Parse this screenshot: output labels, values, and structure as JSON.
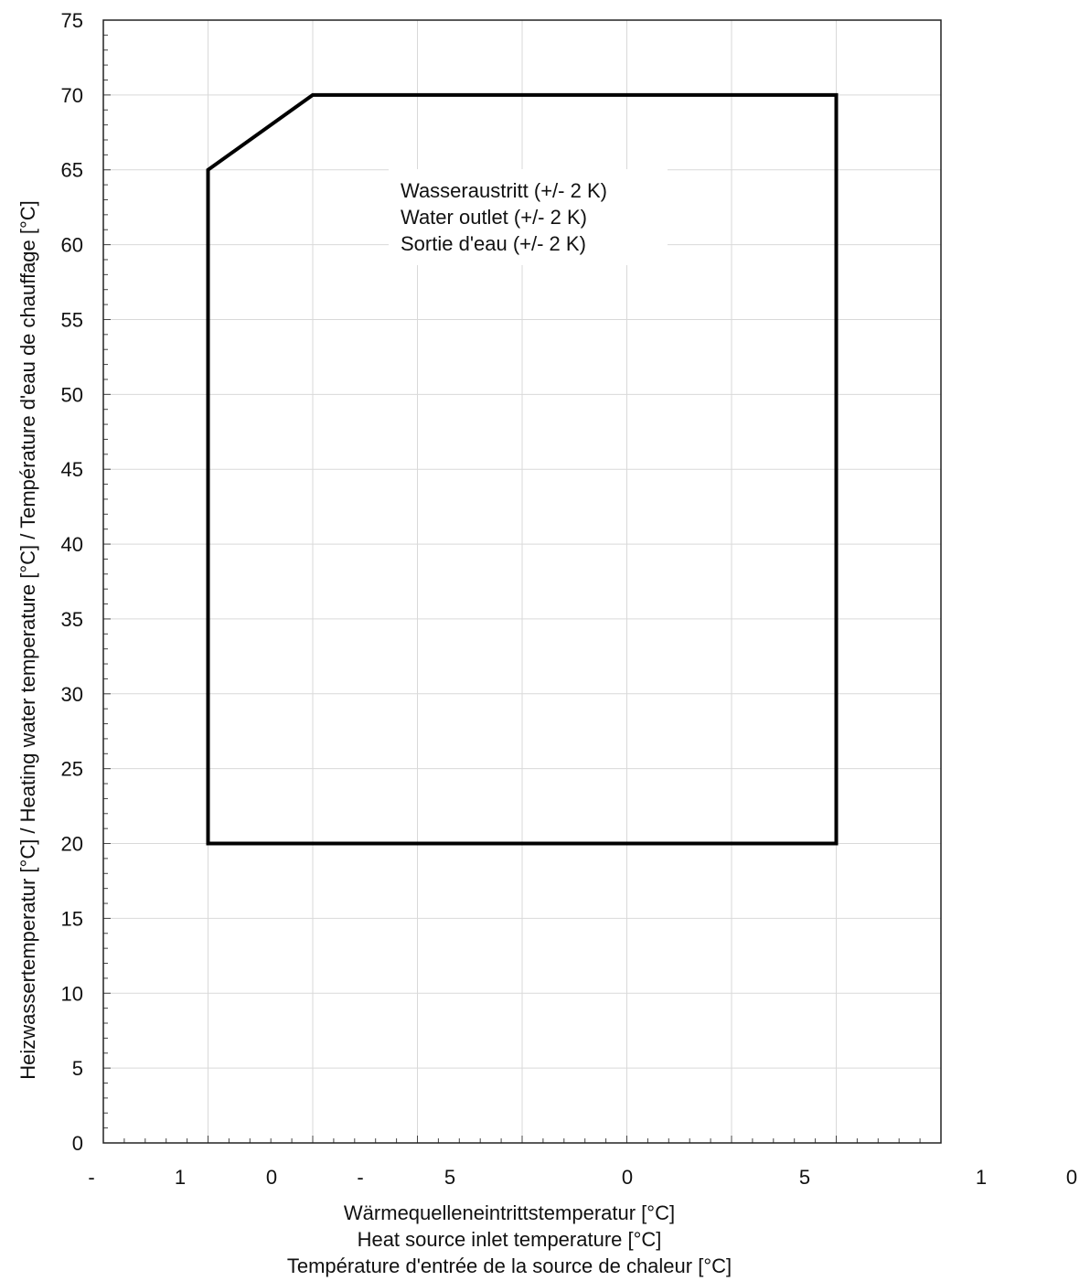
{
  "chart_data": {
    "type": "area",
    "title": "",
    "xlabel_lines": [
      "Wärmequelleneintrittstemperatur [°C]",
      "Heat source inlet temperature [°C]",
      "Température d'entrée de la source de chaleur  [°C]"
    ],
    "ylabel": "Heizwassertemperatur [°C]  /  Heating water temperature [°C]  /  Température d'eau de chauffage [°C]",
    "ylim": [
      0,
      75
    ],
    "y_ticks": [
      "0",
      "5",
      "10",
      "15",
      "20",
      "25",
      "30",
      "35",
      "40",
      "45",
      "50",
      "55",
      "60",
      "65",
      "70",
      "75"
    ],
    "x_tick_labels": [
      "-",
      "1",
      "0",
      "-",
      "5",
      "0",
      "5",
      "1",
      "0"
    ],
    "grid": true,
    "annotation_lines": [
      "Wasseraustritt  (+/- 2 K)",
      "Water outlet (+/- 2 K)",
      "Sortie d'eau (+/- 2 K)"
    ],
    "series": [
      {
        "points": [
          {
            "x": -15,
            "y": 20
          },
          {
            "x": -15,
            "y": 65
          },
          {
            "x": -10,
            "y": 70
          },
          {
            "x": 15,
            "y": 70
          },
          {
            "x": 15,
            "y": 20
          }
        ]
      }
    ],
    "xlim": [
      -20,
      20
    ]
  }
}
